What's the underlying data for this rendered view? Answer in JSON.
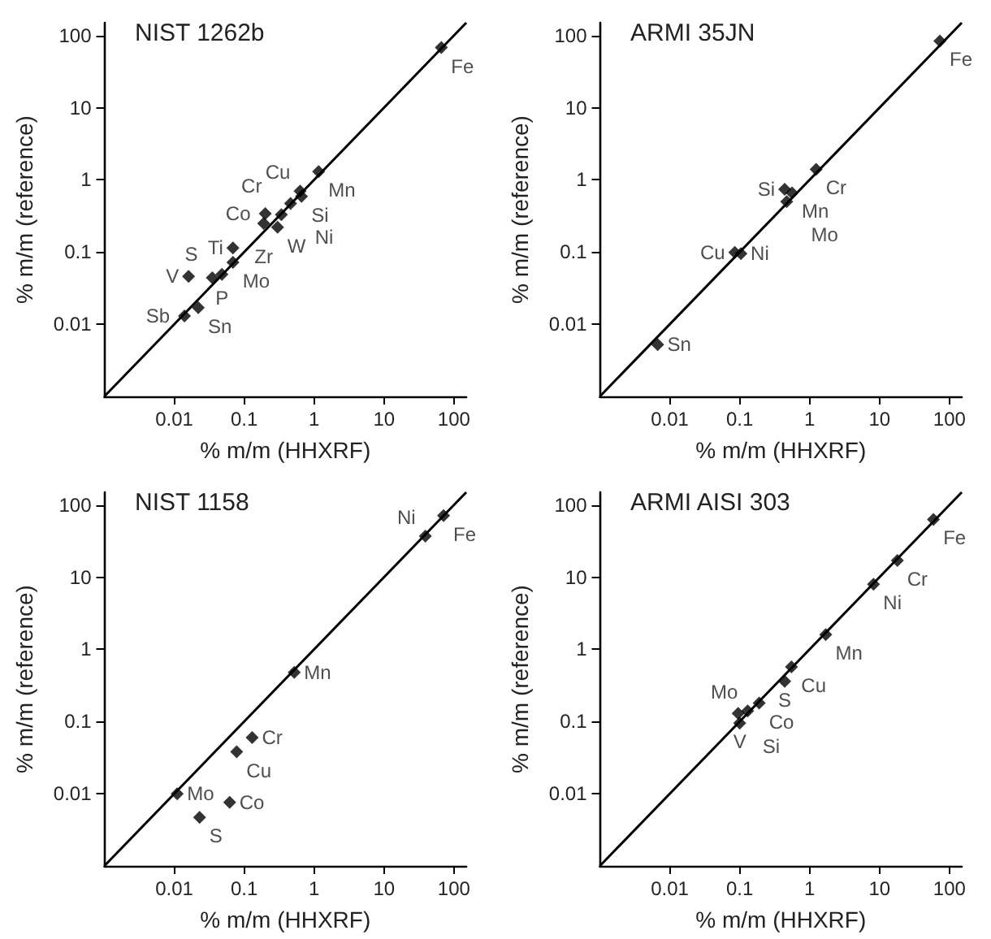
{
  "chart_data": [
    {
      "type": "scatter",
      "title": "NIST 1262b",
      "xlabel": "% m/m (HHXRF)",
      "ylabel": "% m/m (reference)",
      "log": "xy",
      "grid": false,
      "xlim": [
        0.001,
        150
      ],
      "ylim": [
        0.001,
        150
      ],
      "xticks": [
        0.01,
        0.1,
        1,
        10,
        100
      ],
      "yticks": [
        0.01,
        0.1,
        1,
        10,
        100
      ],
      "series": [
        {
          "type": "scatter",
          "marker": "diamond",
          "color": "#000000",
          "x": [
            66,
            1.16,
            0.63,
            0.66,
            0.46,
            0.34,
            0.3,
            0.2,
            0.19,
            0.069,
            0.069,
            0.048,
            0.035,
            0.016,
            0.022,
            0.014
          ],
          "values": [
            68,
            1.3,
            0.7,
            0.59,
            0.47,
            0.33,
            0.22,
            0.34,
            0.25,
            0.114,
            0.072,
            0.049,
            0.044,
            0.046,
            0.017,
            0.013
          ]
        },
        {
          "type": "line",
          "color": "#000000",
          "line_style": "solid",
          "x": [
            0.001,
            150
          ],
          "values": [
            0.001,
            150
          ]
        }
      ],
      "annotations": [
        {
          "text": "Fe",
          "x": 66,
          "y": 68
        },
        {
          "text": "Mn",
          "x": 1.16,
          "y": 1.3
        },
        {
          "text": "Cu",
          "x": 0.63,
          "y": 0.7
        },
        {
          "text": "Si",
          "x": 0.66,
          "y": 0.59
        },
        {
          "text": "Ni",
          "x": 0.46,
          "y": 0.47
        },
        {
          "text": "Cr",
          "x": 0.34,
          "y": 0.33
        },
        {
          "text": "W",
          "x": 0.3,
          "y": 0.22
        },
        {
          "text": "Co",
          "x": 0.2,
          "y": 0.34
        },
        {
          "text": "Zr",
          "x": 0.19,
          "y": 0.25
        },
        {
          "text": "Ti",
          "x": 0.069,
          "y": 0.114
        },
        {
          "text": "Mo",
          "x": 0.069,
          "y": 0.072
        },
        {
          "text": "P",
          "x": 0.048,
          "y": 0.049
        },
        {
          "text": "S",
          "x": 0.035,
          "y": 0.044
        },
        {
          "text": "V",
          "x": 0.016,
          "y": 0.046
        },
        {
          "text": "Sn",
          "x": 0.022,
          "y": 0.017
        },
        {
          "text": "Sb",
          "x": 0.014,
          "y": 0.013
        }
      ]
    },
    {
      "type": "scatter",
      "title": "ARMI 35JN",
      "xlabel": "% m/m (HHXRF)",
      "ylabel": "% m/m (reference)",
      "log": "xy",
      "grid": false,
      "xlim": [
        0.001,
        150
      ],
      "ylim": [
        0.001,
        150
      ],
      "xticks": [
        0.01,
        0.1,
        1,
        10,
        100
      ],
      "yticks": [
        0.01,
        0.1,
        1,
        10,
        100
      ],
      "series": [
        {
          "type": "scatter",
          "marker": "diamond",
          "color": "#000000",
          "x": [
            73,
            1.24,
            0.56,
            0.44,
            0.47,
            0.085,
            0.104,
            0.0067
          ],
          "values": [
            84,
            1.4,
            0.66,
            0.74,
            0.5,
            0.099,
            0.095,
            0.0052
          ]
        },
        {
          "type": "line",
          "color": "#000000",
          "line_style": "solid",
          "x": [
            0.001,
            150
          ],
          "values": [
            0.001,
            150
          ]
        }
      ],
      "annotations": [
        {
          "text": "Fe",
          "x": 73,
          "y": 84
        },
        {
          "text": "Cr",
          "x": 1.24,
          "y": 1.4
        },
        {
          "text": "Mn",
          "x": 0.56,
          "y": 0.66
        },
        {
          "text": "Si",
          "x": 0.44,
          "y": 0.74
        },
        {
          "text": "Mo",
          "x": 0.47,
          "y": 0.5
        },
        {
          "text": "Cu",
          "x": 0.085,
          "y": 0.099
        },
        {
          "text": "Ni",
          "x": 0.104,
          "y": 0.095
        },
        {
          "text": "Sn",
          "x": 0.0067,
          "y": 0.0052
        }
      ]
    },
    {
      "type": "scatter",
      "title": "NIST 1158",
      "xlabel": "% m/m (HHXRF)",
      "ylabel": "% m/m (reference)",
      "log": "xy",
      "grid": false,
      "xlim": [
        0.001,
        150
      ],
      "ylim": [
        0.001,
        150
      ],
      "xticks": [
        0.01,
        0.1,
        1,
        10,
        100
      ],
      "yticks": [
        0.01,
        0.1,
        1,
        10,
        100
      ],
      "series": [
        {
          "type": "scatter",
          "marker": "diamond",
          "color": "#000000",
          "x": [
            71,
            39,
            0.52,
            0.13,
            0.078,
            0.011,
            0.062,
            0.023
          ],
          "values": [
            71,
            37,
            0.48,
            0.06,
            0.038,
            0.01,
            0.0076,
            0.0047
          ]
        },
        {
          "type": "line",
          "color": "#000000",
          "line_style": "solid",
          "x": [
            0.001,
            150
          ],
          "values": [
            0.001,
            150
          ]
        }
      ],
      "annotations": [
        {
          "text": "Fe",
          "x": 71,
          "y": 71
        },
        {
          "text": "Ni",
          "x": 39,
          "y": 37
        },
        {
          "text": "Mn",
          "x": 0.52,
          "y": 0.48
        },
        {
          "text": "Cr",
          "x": 0.13,
          "y": 0.06
        },
        {
          "text": "Cu",
          "x": 0.078,
          "y": 0.038
        },
        {
          "text": "Mo",
          "x": 0.011,
          "y": 0.01
        },
        {
          "text": "Co",
          "x": 0.062,
          "y": 0.0076
        },
        {
          "text": "S",
          "x": 0.023,
          "y": 0.0047
        }
      ]
    },
    {
      "type": "scatter",
      "title": "ARMI AISI 303",
      "xlabel": "% m/m (HHXRF)",
      "ylabel": "% m/m (reference)",
      "log": "xy",
      "grid": false,
      "xlim": [
        0.001,
        150
      ],
      "ylim": [
        0.001,
        150
      ],
      "xticks": [
        0.01,
        0.1,
        1,
        10,
        100
      ],
      "yticks": [
        0.01,
        0.1,
        1,
        10,
        100
      ],
      "series": [
        {
          "type": "scatter",
          "marker": "diamond",
          "color": "#000000",
          "x": [
            59,
            18,
            8.2,
            1.7,
            0.55,
            0.44,
            0.19,
            0.13,
            0.095,
            0.1
          ],
          "values": [
            63,
            17,
            8,
            1.6,
            0.57,
            0.36,
            0.18,
            0.14,
            0.13,
            0.095
          ]
        },
        {
          "type": "line",
          "color": "#000000",
          "line_style": "solid",
          "x": [
            0.001,
            150
          ],
          "values": [
            0.001,
            150
          ]
        }
      ],
      "annotations": [
        {
          "text": "Fe",
          "x": 59,
          "y": 63
        },
        {
          "text": "Cr",
          "x": 18,
          "y": 17
        },
        {
          "text": "Ni",
          "x": 8.2,
          "y": 8
        },
        {
          "text": "Mn",
          "x": 1.7,
          "y": 1.6
        },
        {
          "text": "Cu",
          "x": 0.55,
          "y": 0.57
        },
        {
          "text": "S",
          "x": 0.44,
          "y": 0.36
        },
        {
          "text": "Co",
          "x": 0.19,
          "y": 0.18
        },
        {
          "text": "Mo",
          "x": 0.13,
          "y": 0.14
        },
        {
          "text": "Si",
          "x": 0.095,
          "y": 0.13
        },
        {
          "text": "V",
          "x": 0.1,
          "y": 0.095
        }
      ]
    }
  ]
}
